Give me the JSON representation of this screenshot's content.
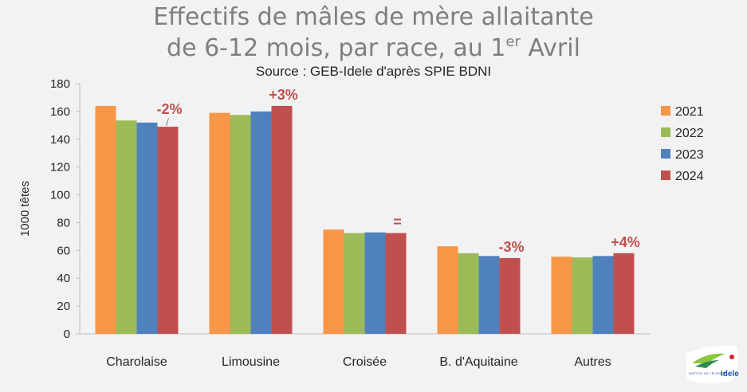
{
  "title": {
    "line1": "Effectifs de mâles de mère allaitante",
    "line2_main": "de 6-12 mois, par race, au 1",
    "line2_sup": "er",
    "line2_end": " Avril",
    "subtitle": "Source : GEB-Idele d'après SPIE BDNI"
  },
  "logo": {
    "text_small": "INSTITUT DE L'ÉLEVAGE",
    "text_brand": "idele"
  },
  "chart_data": {
    "type": "bar",
    "title": "Effectifs de mâles de mère allaitante de 6-12 mois, par race, au 1er Avril",
    "subtitle": "Source : GEB-Idele d'après SPIE BDNI",
    "xlabel": "",
    "ylabel": "1000 têtes",
    "ylim": [
      0,
      180
    ],
    "yticks": [
      0,
      20,
      40,
      60,
      80,
      100,
      120,
      140,
      160,
      180
    ],
    "categories": [
      "Charolaise",
      "Limousine",
      "Croisée",
      "B. d'Aquitaine",
      "Autres"
    ],
    "series": [
      {
        "name": "2021",
        "color": "#f79646",
        "values": [
          164,
          159,
          75,
          63,
          55.5
        ]
      },
      {
        "name": "2022",
        "color": "#9bbb59",
        "values": [
          153.5,
          157.5,
          72.5,
          58,
          55
        ]
      },
      {
        "name": "2023",
        "color": "#4f81bd",
        "values": [
          152,
          160,
          73,
          56,
          56
        ]
      },
      {
        "name": "2024",
        "color": "#c0504d",
        "values": [
          149,
          164,
          72.5,
          54.5,
          58
        ]
      }
    ],
    "annotations": [
      {
        "category": "Charolaise",
        "text": "-2%"
      },
      {
        "category": "Limousine",
        "text": "+3%"
      },
      {
        "category": "Croisée",
        "text": "="
      },
      {
        "category": "B. d'Aquitaine",
        "text": "-3%"
      },
      {
        "category": "Autres",
        "text": "+4%"
      }
    ],
    "annotation_color": "#c0504d",
    "legend_position": "right",
    "grid": false
  }
}
